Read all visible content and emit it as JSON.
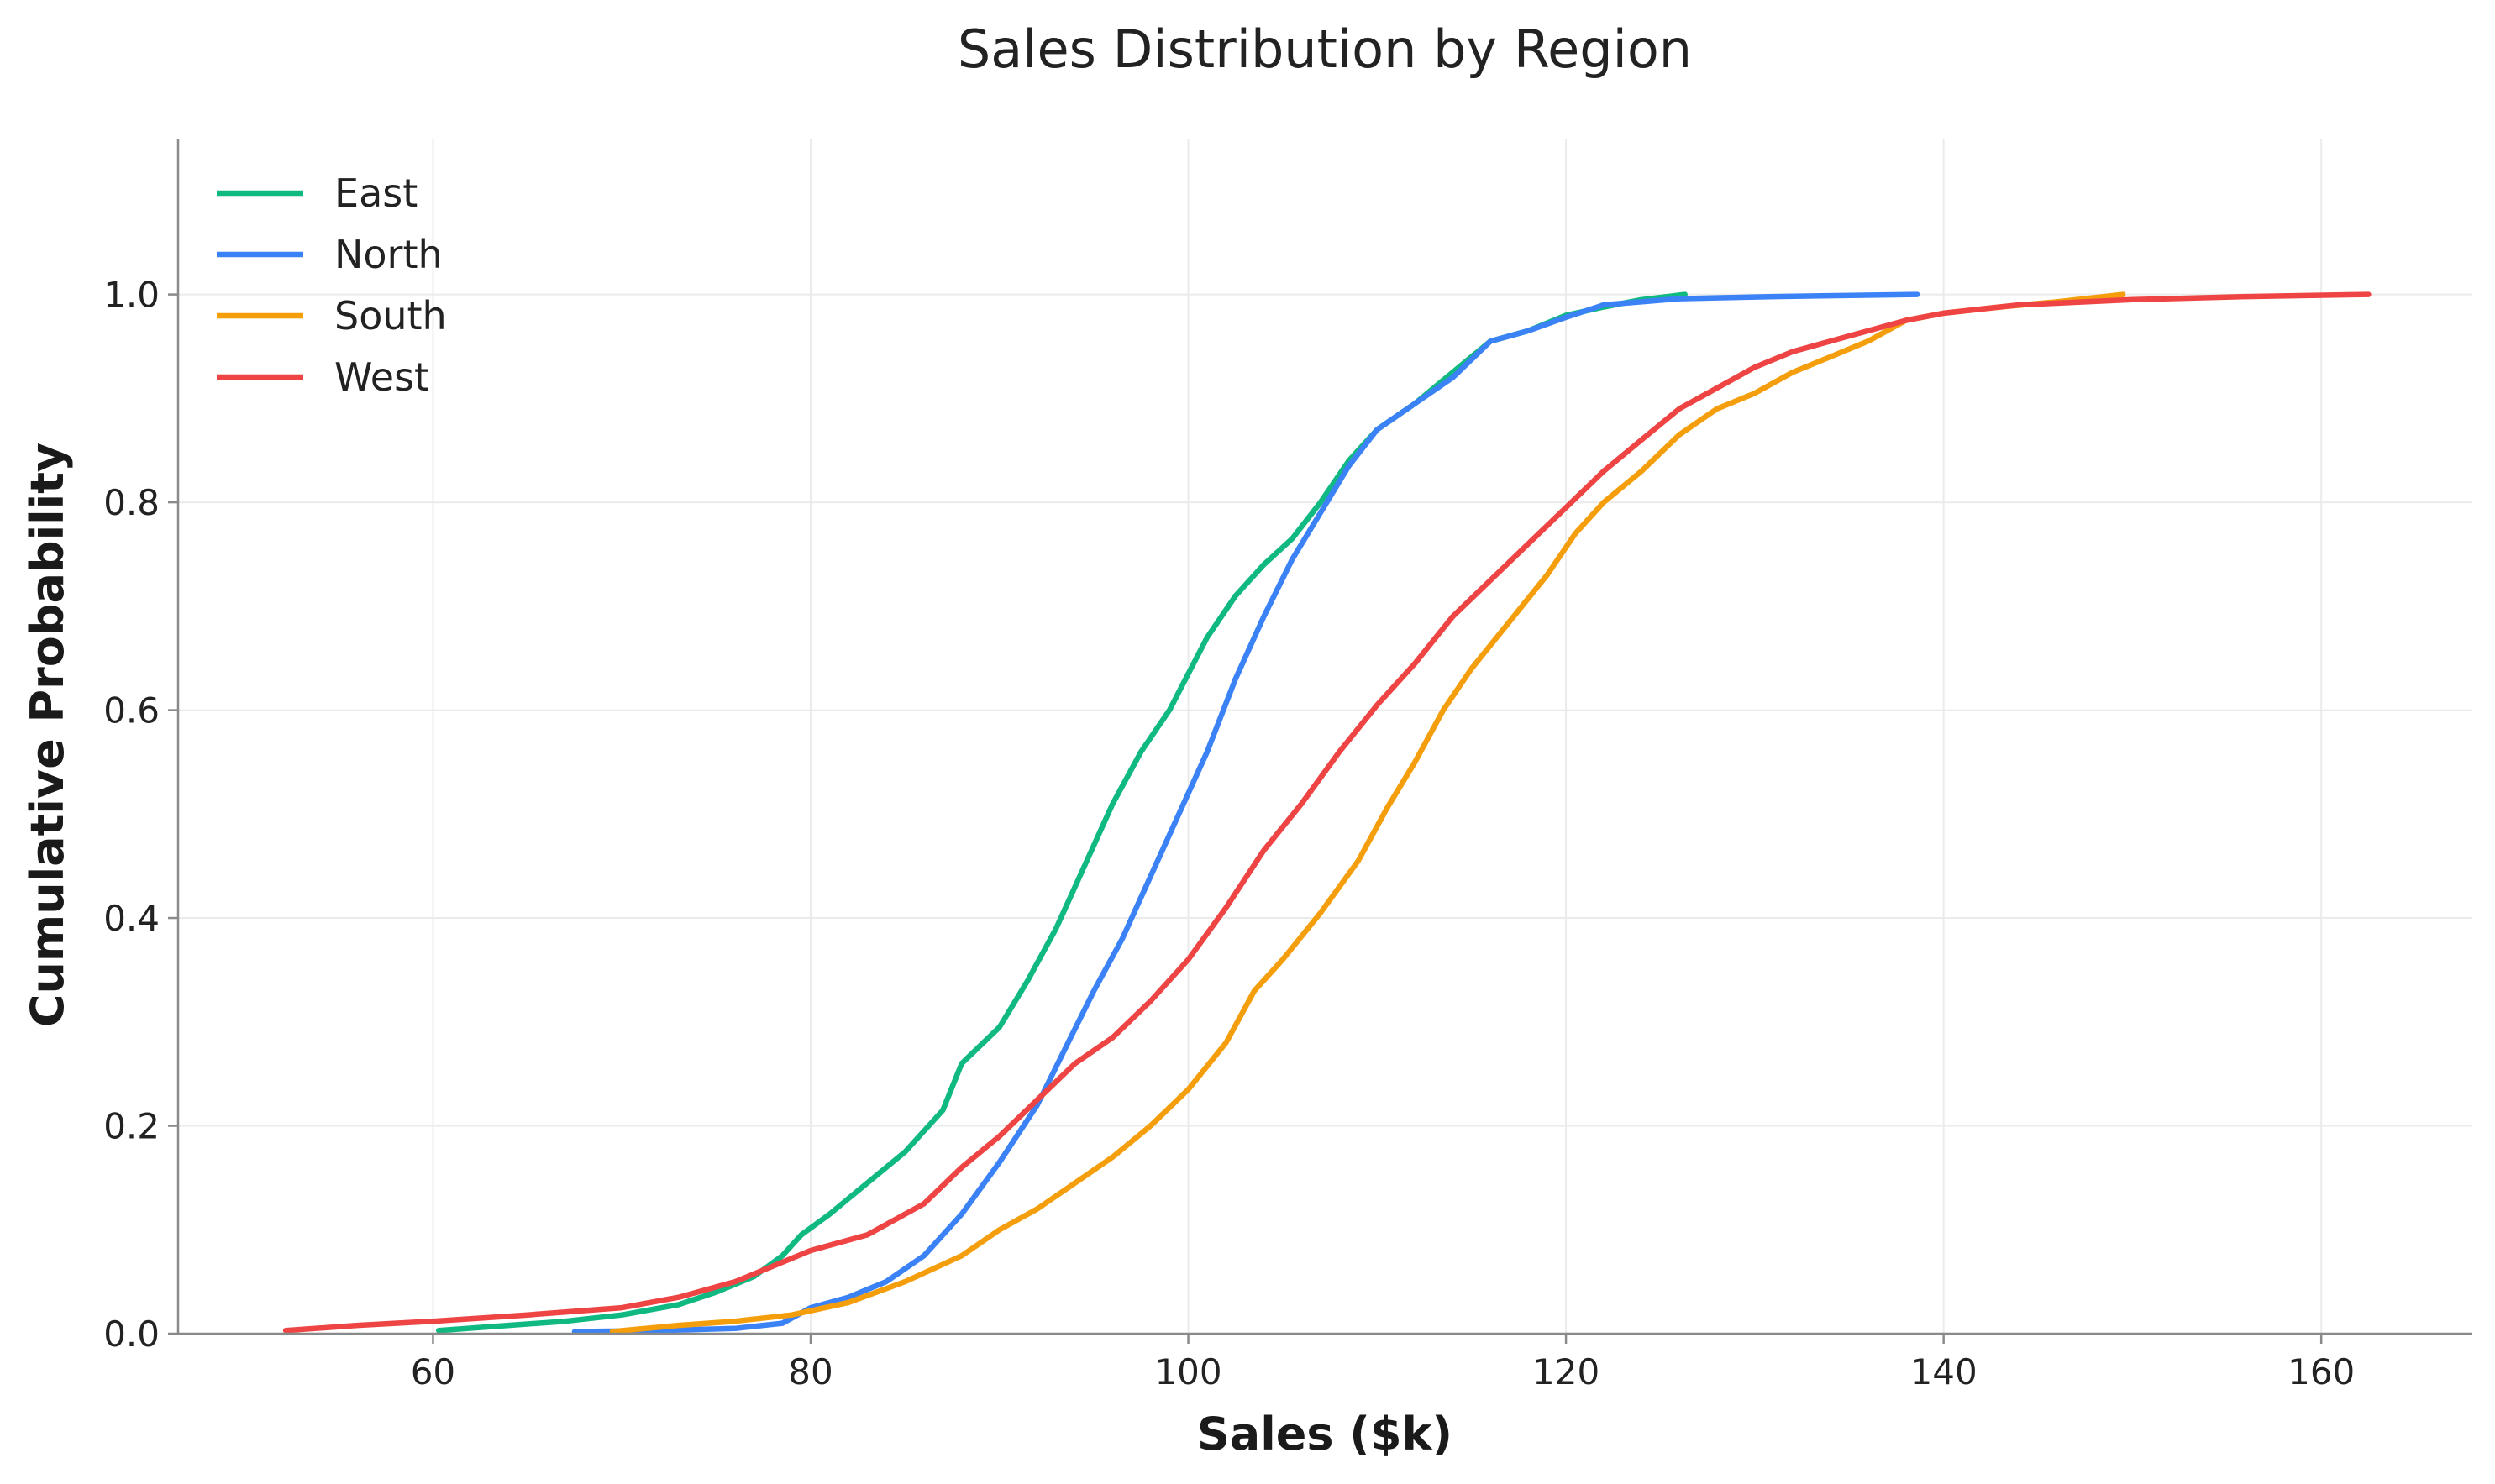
{
  "chart_data": {
    "type": "line",
    "title": "Sales Distribution by Region",
    "xlabel": "Sales ($k)",
    "ylabel": "Cumulative Probability",
    "xlim": [
      46.5,
      168
    ],
    "ylim": [
      0,
      1.15
    ],
    "xticks": [
      60,
      80,
      100,
      120,
      140,
      160
    ],
    "yticks": [
      0.0,
      0.2,
      0.4,
      0.6,
      0.8,
      1.0
    ],
    "xtick_labels": [
      "60",
      "80",
      "100",
      "120",
      "140",
      "160"
    ],
    "ytick_labels": [
      "0.0",
      "0.2",
      "0.4",
      "0.6",
      "0.8",
      "1.0"
    ],
    "grid": true,
    "legend_position": "top-left",
    "series": [
      {
        "name": "East",
        "color": "#10b981",
        "x": [
          60.3,
          64,
          67,
          70,
          73,
          75,
          77,
          78.5,
          79.5,
          81,
          83,
          85,
          87,
          88,
          90,
          91.5,
          93,
          94.5,
          96,
          97.5,
          99,
          100,
          101,
          102.5,
          104,
          105.5,
          107,
          108.5,
          110,
          112,
          114,
          116,
          118,
          120,
          122,
          124,
          126.3
        ],
        "y": [
          0.003,
          0.008,
          0.012,
          0.018,
          0.028,
          0.04,
          0.055,
          0.075,
          0.095,
          0.115,
          0.145,
          0.175,
          0.215,
          0.26,
          0.295,
          0.34,
          0.39,
          0.45,
          0.51,
          0.56,
          0.6,
          0.635,
          0.67,
          0.71,
          0.74,
          0.765,
          0.8,
          0.84,
          0.87,
          0.895,
          0.925,
          0.955,
          0.965,
          0.98,
          0.988,
          0.995,
          1.0
        ]
      },
      {
        "name": "North",
        "color": "#3b82f6",
        "x": [
          67.5,
          72,
          76,
          78.5,
          80,
          82,
          84,
          86,
          88,
          90,
          92,
          93.5,
          95,
          96.5,
          98,
          99.5,
          101,
          102.5,
          104,
          105.5,
          107,
          108.5,
          110,
          112,
          114,
          116,
          118,
          120,
          122,
          126,
          131,
          138.6
        ],
        "y": [
          0.002,
          0.003,
          0.005,
          0.01,
          0.025,
          0.035,
          0.05,
          0.075,
          0.115,
          0.165,
          0.22,
          0.275,
          0.33,
          0.38,
          0.44,
          0.5,
          0.56,
          0.63,
          0.69,
          0.745,
          0.79,
          0.835,
          0.87,
          0.895,
          0.92,
          0.955,
          0.965,
          0.978,
          0.99,
          0.996,
          0.998,
          1.0
        ]
      },
      {
        "name": "South",
        "color": "#f59e0b",
        "x": [
          69.5,
          73,
          76,
          79,
          82,
          85,
          88,
          90,
          92,
          94,
          96,
          98,
          100,
          102,
          103.5,
          105,
          107,
          109,
          110.5,
          112,
          113.5,
          115,
          117,
          119,
          120.5,
          122,
          124,
          126,
          128,
          130,
          132,
          134,
          136,
          138,
          140,
          143,
          146,
          149.5
        ],
        "y": [
          0.002,
          0.008,
          0.012,
          0.018,
          0.03,
          0.05,
          0.075,
          0.1,
          0.12,
          0.145,
          0.17,
          0.2,
          0.235,
          0.28,
          0.33,
          0.36,
          0.405,
          0.455,
          0.505,
          0.55,
          0.6,
          0.64,
          0.685,
          0.73,
          0.77,
          0.8,
          0.83,
          0.865,
          0.89,
          0.905,
          0.925,
          0.94,
          0.955,
          0.975,
          0.982,
          0.988,
          0.993,
          1.0
        ]
      },
      {
        "name": "West",
        "color": "#ef4444",
        "x": [
          52.2,
          56,
          60,
          65,
          70,
          73,
          76,
          78,
          80,
          83,
          86,
          88,
          90,
          92,
          94,
          96,
          98,
          100,
          102,
          104,
          106,
          108,
          110,
          112,
          114,
          116,
          118,
          120,
          122,
          124,
          126,
          128,
          130,
          132,
          134,
          136,
          138,
          140,
          144,
          150,
          156,
          162.5
        ],
        "y": [
          0.003,
          0.008,
          0.012,
          0.018,
          0.025,
          0.035,
          0.05,
          0.065,
          0.08,
          0.095,
          0.125,
          0.16,
          0.19,
          0.225,
          0.26,
          0.285,
          0.32,
          0.36,
          0.41,
          0.465,
          0.51,
          0.56,
          0.605,
          0.645,
          0.69,
          0.725,
          0.76,
          0.795,
          0.83,
          0.86,
          0.89,
          0.91,
          0.93,
          0.945,
          0.955,
          0.965,
          0.975,
          0.982,
          0.99,
          0.995,
          0.998,
          1.0
        ]
      }
    ]
  }
}
